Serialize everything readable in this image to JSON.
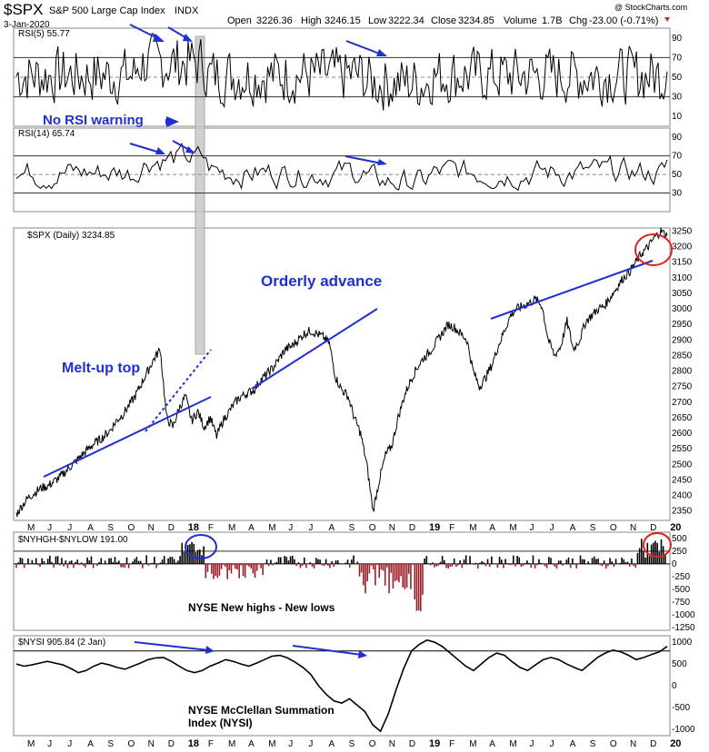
{
  "header": {
    "symbol": "$SPX",
    "name": "S&P 500 Large Cap Index",
    "exchange": "INDX",
    "date": "3-Jan-2020",
    "open_label": "Open",
    "open": "3226.36",
    "high_label": "High",
    "high": "3246.15",
    "low_label": "Low",
    "low": "3222.34",
    "close_label": "Close",
    "close": "3234.85",
    "volume_label": "Volume",
    "volume": "1.7B",
    "chg_label": "Chg",
    "chg": "-23.00 (-0.71%)",
    "watermark": "@ StockCharts.com"
  },
  "annotations": {
    "no_rsi_warning": "No RSI warning",
    "orderly_advance": "Orderly advance",
    "meltup_top": "Melt-up top",
    "nyse_hl": "NYSE New highs - New lows",
    "nysi_line1": "NYSE McClellan Summation",
    "nysi_line2": "Index (NYSI)"
  },
  "x_axis_months": [
    "M",
    "J",
    "J",
    "A",
    "S",
    "O",
    "N",
    "D",
    "18",
    "F",
    "M",
    "A",
    "M",
    "J",
    "J",
    "A",
    "S",
    "O",
    "N",
    "D",
    "19",
    "F",
    "M",
    "A",
    "M",
    "J",
    "J",
    "A",
    "S",
    "O",
    "N",
    "D",
    "20"
  ],
  "colors": {
    "arrow": "#1f2fd0",
    "circle": "#e0231e",
    "rsi_fill_over": "#6f8f65",
    "rsi_fill_under": "#8f5a5e",
    "hl_pos": "#000000",
    "hl_neg": "#9a1e28",
    "highlight": "#c8c8c8"
  },
  "chart_data": [
    {
      "type": "line",
      "title": "RSI(5) 55.77",
      "ylim": [
        0,
        100
      ],
      "y_ticks": [
        "10",
        "30",
        "50",
        "70",
        "90"
      ],
      "reference_lines": [
        30,
        70
      ],
      "last_value": 55.77
    },
    {
      "type": "line",
      "title": "RSI(14) 65.74",
      "ylim": [
        10,
        100
      ],
      "y_ticks": [
        "30",
        "50",
        "70",
        "90"
      ],
      "reference_lines": [
        30,
        70
      ],
      "last_value": 65.74
    },
    {
      "type": "line",
      "title": "$SPX (Daily) 3234.85",
      "ylim": [
        2320,
        3260
      ],
      "y_ticks": [
        "2350",
        "2400",
        "2450",
        "2500",
        "2550",
        "2600",
        "2650",
        "2700",
        "2750",
        "2800",
        "2850",
        "2900",
        "2950",
        "3000",
        "3050",
        "3100",
        "3150",
        "3200",
        "3250"
      ],
      "series": [
        {
          "values": [
            2340,
            2370,
            2395,
            2410,
            2425,
            2430,
            2445,
            2460,
            2480,
            2500,
            2520,
            2540,
            2560,
            2575,
            2590,
            2610,
            2640,
            2660,
            2690,
            2720,
            2760,
            2800,
            2840,
            2870,
            2650,
            2620,
            2680,
            2720,
            2640,
            2670,
            2620,
            2650,
            2590,
            2640,
            2670,
            2700,
            2720,
            2730,
            2740,
            2770,
            2790,
            2810,
            2840,
            2870,
            2880,
            2900,
            2920,
            2930,
            2920,
            2910,
            2890,
            2780,
            2740,
            2720,
            2650,
            2600,
            2500,
            2350,
            2450,
            2530,
            2560,
            2650,
            2720,
            2770,
            2810,
            2840,
            2860,
            2890,
            2920,
            2950,
            2940,
            2920,
            2900,
            2800,
            2750,
            2780,
            2820,
            2880,
            2930,
            2980,
            3000,
            3010,
            3020,
            3030,
            3010,
            2900,
            2850,
            2880,
            2960,
            2870,
            2900,
            2960,
            2980,
            3000,
            3010,
            3040,
            3070,
            3100,
            3120,
            3150,
            3180,
            3200,
            3230,
            3250,
            3235
          ]
        }
      ],
      "trendlines": [
        "Melt-up top",
        "Orderly advance"
      ]
    },
    {
      "type": "bar",
      "title": "$NYHGH-$NYLOW 191.00",
      "ylim": [
        -1300,
        620
      ],
      "y_ticks": [
        "500",
        "250",
        "0",
        "-250",
        "-500",
        "-750",
        "-1000",
        "-1250"
      ],
      "last_value": 191.0
    },
    {
      "type": "line",
      "title": "$NYSI 905.84 (2 Jan)",
      "ylim": [
        -1150,
        1150
      ],
      "y_ticks": [
        "1000",
        "500",
        "0",
        "-500",
        "-1000"
      ],
      "reference_lines": [
        800
      ],
      "series": [
        {
          "values": [
            500,
            450,
            480,
            520,
            560,
            520,
            480,
            400,
            300,
            350,
            450,
            520,
            480,
            420,
            380,
            450,
            520,
            600,
            640,
            650,
            560,
            450,
            350,
            300,
            350,
            450,
            520,
            600,
            560,
            500,
            450,
            520,
            600,
            680,
            700,
            640,
            540,
            420,
            260,
            0,
            -200,
            -350,
            -400,
            -300,
            -450,
            -600,
            -900,
            -1050,
            -650,
            -100,
            400,
            800,
            950,
            1050,
            1000,
            900,
            750,
            600,
            450,
            350,
            500,
            650,
            750,
            700,
            550,
            420,
            350,
            480,
            600,
            650,
            600,
            500,
            420,
            350,
            500,
            650,
            750,
            820,
            780,
            700,
            600,
            650,
            720,
            780,
            906
          ]
        }
      ]
    }
  ]
}
